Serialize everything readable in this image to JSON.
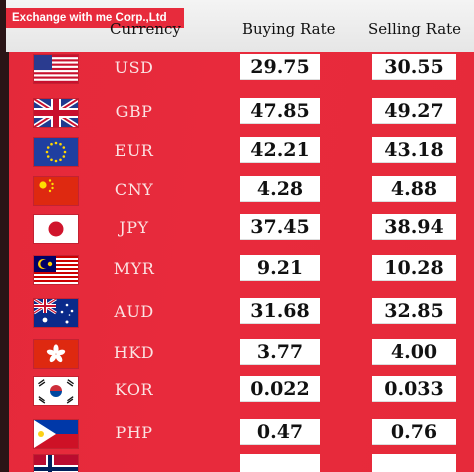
{
  "company": "Exchange with me Corp.,Ltd",
  "headers": {
    "currency": "Currency",
    "buying": "Buying Rate",
    "selling": "Selling Rate"
  },
  "rows": [
    {
      "code": "USD",
      "buy": "29.75",
      "sell": "30.55",
      "flag": "us-flag-icon"
    },
    {
      "code": "GBP",
      "buy": "47.85",
      "sell": "49.27",
      "flag": "uk-flag-icon"
    },
    {
      "code": "EUR",
      "buy": "42.21",
      "sell": "43.18",
      "flag": "eu-flag-icon"
    },
    {
      "code": "CNY",
      "buy": "4.28",
      "sell": "4.88",
      "flag": "china-flag-icon"
    },
    {
      "code": "JPY",
      "buy": "37.45",
      "sell": "38.94",
      "flag": "japan-flag-icon"
    },
    {
      "code": "MYR",
      "buy": "9.21",
      "sell": "10.28",
      "flag": "malaysia-flag-icon"
    },
    {
      "code": "AUD",
      "buy": "31.68",
      "sell": "32.85",
      "flag": "australia-flag-icon"
    },
    {
      "code": "HKD",
      "buy": "3.77",
      "sell": "4.00",
      "flag": "hongkong-flag-icon"
    },
    {
      "code": "KOR",
      "buy": "0.022",
      "sell": "0.033",
      "flag": "korea-flag-icon"
    },
    {
      "code": "PHP",
      "buy": "0.47",
      "sell": "0.76",
      "flag": "philippines-flag-icon"
    }
  ],
  "colors": {
    "board": "#e62a3a",
    "header": "#f0f0f0",
    "rate_box": "#ffffff"
  }
}
